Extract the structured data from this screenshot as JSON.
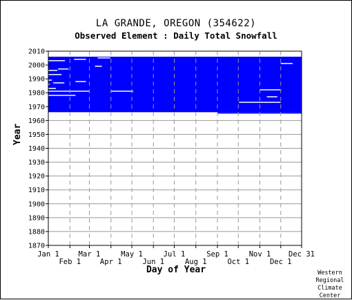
{
  "title": "LA GRANDE, OREGON   (354622)",
  "subtitle": "Observed Element : Daily Total Snowfall",
  "credit": [
    "Western",
    "Regional",
    "Climate",
    "Center"
  ],
  "chart_data": {
    "type": "heatmap",
    "title": "LA GRANDE, OREGON   (354622)",
    "subtitle": "Observed Element : Daily Total Snowfall",
    "xlabel": "Day of Year",
    "ylabel": "Year",
    "ylim": [
      1870,
      2010
    ],
    "y_ticks": [
      2010,
      2000,
      1990,
      1980,
      1970,
      1960,
      1950,
      1940,
      1930,
      1920,
      1910,
      1900,
      1890,
      1880,
      1870
    ],
    "x_ticks_upper": [
      {
        "label": "Jan 1",
        "day": 1
      },
      {
        "label": "Mar 1",
        "day": 60
      },
      {
        "label": "May 1",
        "day": 121
      },
      {
        "label": "Jul 1",
        "day": 182
      },
      {
        "label": "Sep 1",
        "day": 244
      },
      {
        "label": "Nov 1",
        "day": 305
      },
      {
        "label": "Dec 31",
        "day": 365
      }
    ],
    "x_ticks_lower": [
      {
        "label": "Feb 1",
        "day": 32
      },
      {
        "label": "Apr 1",
        "day": 91
      },
      {
        "label": "Jun 1",
        "day": 152
      },
      {
        "label": "Aug 1",
        "day": 213
      },
      {
        "label": "Oct 1",
        "day": 274
      },
      {
        "label": "Dec 1",
        "day": 335
      }
    ],
    "grid": true,
    "data_color": "#0000ff",
    "data_coverage": {
      "main_block": {
        "day_start": 1,
        "day_end": 365,
        "year_start": 1966,
        "year_end": 2005
      },
      "extended_late_block": {
        "day_start": 244,
        "day_end": 365,
        "year_start": 1965,
        "year_end": 1966
      }
    },
    "missing_segments": [
      {
        "year": 1973,
        "day_start": 275,
        "day_end": 335
      },
      {
        "year": 1978,
        "day_start": 1,
        "day_end": 40
      },
      {
        "year": 1981,
        "day_start": 1,
        "day_end": 60
      },
      {
        "year": 1981,
        "day_start": 91,
        "day_end": 123
      },
      {
        "year": 1982,
        "day_start": 305,
        "day_end": 335
      },
      {
        "year": 1977,
        "day_start": 315,
        "day_end": 330
      },
      {
        "year": 1983,
        "day_start": 1,
        "day_end": 12
      },
      {
        "year": 1986,
        "day_start": 1,
        "day_end": 3
      },
      {
        "year": 1987,
        "day_start": 8,
        "day_end": 24
      },
      {
        "year": 1988,
        "day_start": 40,
        "day_end": 55
      },
      {
        "year": 1989,
        "day_start": 1,
        "day_end": 6
      },
      {
        "year": 1993,
        "day_start": 1,
        "day_end": 20
      },
      {
        "year": 1996,
        "day_start": 1,
        "day_end": 14
      },
      {
        "year": 1997,
        "day_start": 15,
        "day_end": 30
      },
      {
        "year": 1999,
        "day_start": 68,
        "day_end": 78
      },
      {
        "year": 2001,
        "day_start": 335,
        "day_end": 352
      },
      {
        "year": 2003,
        "day_start": 1,
        "day_end": 25
      },
      {
        "year": 2004,
        "day_start": 38,
        "day_end": 55
      },
      {
        "year": 2005,
        "day_start": 72,
        "day_end": 90
      }
    ]
  }
}
